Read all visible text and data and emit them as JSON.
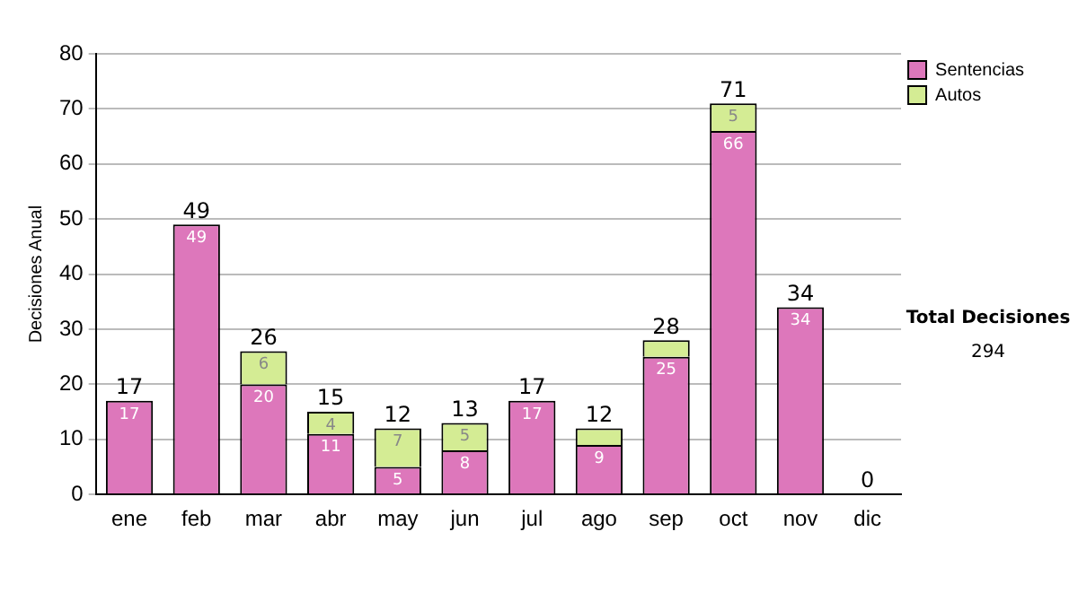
{
  "chart_data": {
    "type": "bar",
    "ylabel": "Decisiones Anual",
    "categories": [
      "ene",
      "feb",
      "mar",
      "abr",
      "may",
      "jun",
      "jul",
      "ago",
      "sep",
      "oct",
      "nov",
      "dic"
    ],
    "series": [
      {
        "name": "Sentencias",
        "color": "#dd77bb",
        "values": [
          17,
          49,
          20,
          11,
          5,
          8,
          17,
          9,
          25,
          66,
          34,
          0
        ],
        "value_labels": [
          "17",
          "49",
          "20",
          "11",
          "5",
          "8",
          "17",
          "9",
          "25",
          "66",
          "34",
          null
        ]
      },
      {
        "name": "Autos",
        "color": "#d4ec94",
        "values": [
          0,
          0,
          6,
          4,
          7,
          5,
          0,
          3,
          3,
          5,
          0,
          0
        ],
        "value_labels": [
          null,
          null,
          "6",
          "4",
          "7",
          "5",
          null,
          null,
          null,
          "5",
          null,
          null
        ]
      }
    ],
    "stacked": true,
    "totals": [
      "17",
      "49",
      "26",
      "15",
      "12",
      "13",
      "17",
      "12",
      "28",
      "71",
      "34",
      "0"
    ],
    "ylim": [
      0,
      80
    ],
    "yticks": [
      0,
      10,
      20,
      30,
      40,
      50,
      60,
      70,
      80
    ],
    "grid": "y",
    "legend": "right",
    "annotations": [
      "Total Decisiones",
      "294"
    ]
  }
}
